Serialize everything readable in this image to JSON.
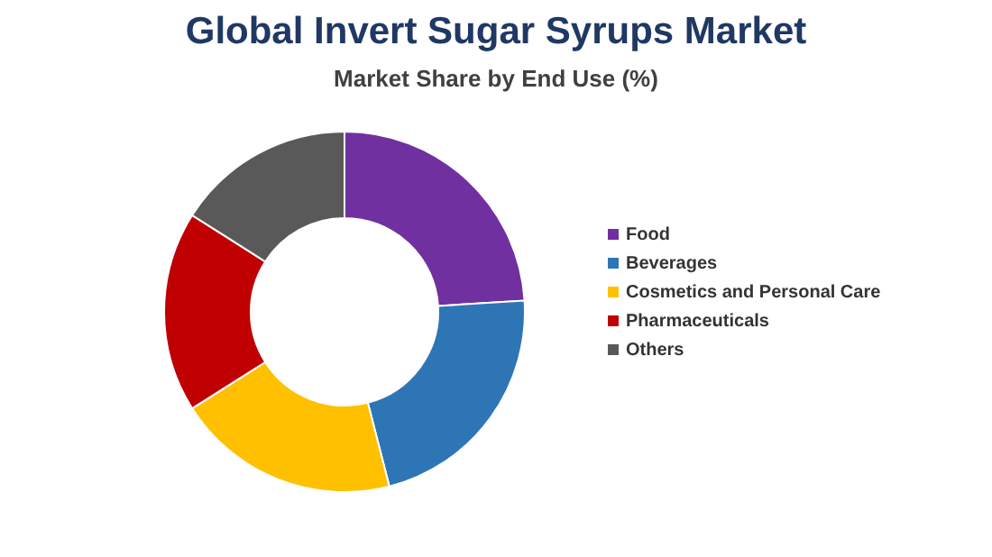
{
  "chart_data": {
    "type": "donut",
    "title": "Global Invert Sugar Syrups Market",
    "subtitle": "Market Share by End Use (%)",
    "categories": [
      "Food",
      "Beverages",
      "Cosmetics and Personal Care",
      "Pharmaceuticals",
      "Others"
    ],
    "values": [
      24,
      22,
      20,
      18,
      16
    ],
    "colors": [
      "#7030a0",
      "#2e75b6",
      "#ffc000",
      "#c00000",
      "#595959"
    ],
    "legend": "right"
  }
}
